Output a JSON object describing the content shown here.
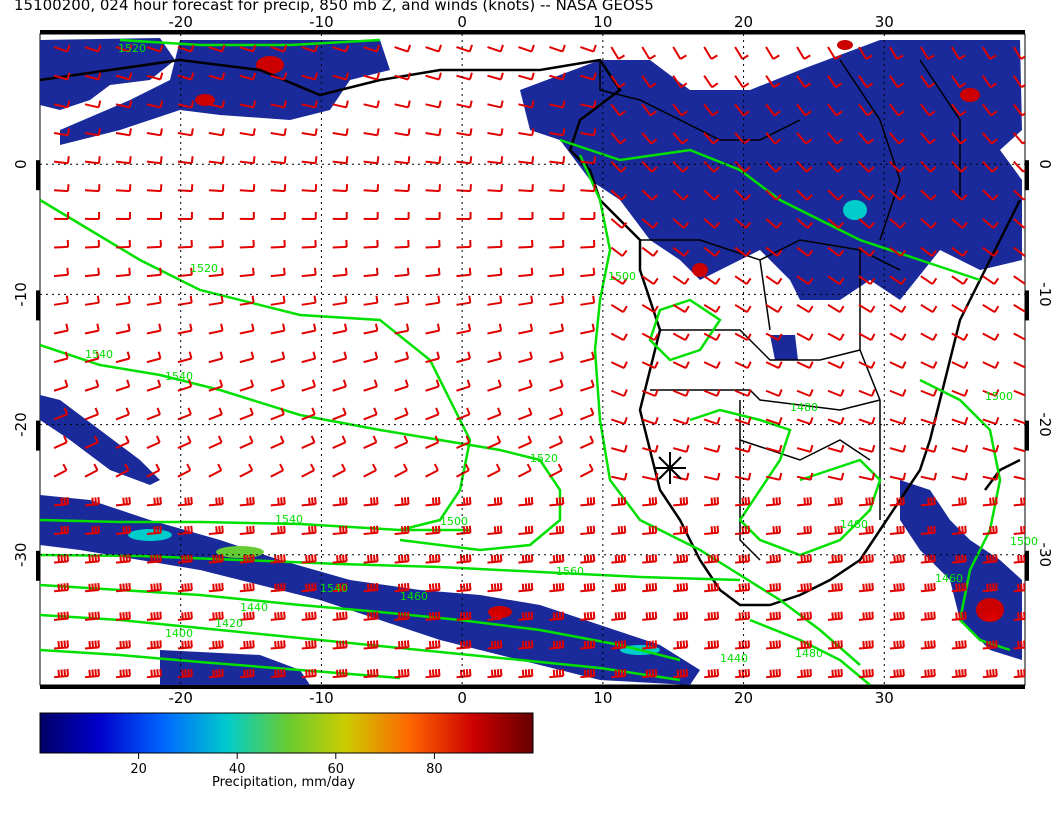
{
  "title": "15100200, 024 hour forecast for precip, 850 mb Z, and winds (knots) -- NASA GEOS5",
  "map": {
    "lon_range": [
      -30,
      40
    ],
    "lat_range": [
      -40,
      10
    ],
    "lon_ticks": [
      "-20",
      "-10",
      "0",
      "10",
      "20",
      "30"
    ],
    "lat_ticks": [
      "0",
      "-10",
      "-20",
      "-30"
    ],
    "contour_labels": [
      "1520",
      "1520",
      "1540",
      "1540",
      "1540",
      "1520",
      "1500",
      "1500",
      "1560",
      "1540",
      "1440",
      "1420",
      "1460",
      "1480",
      "1480",
      "1480",
      "1460",
      "1500",
      "1500",
      "1440",
      "1400"
    ],
    "marker": "star"
  },
  "colorbar": {
    "ticks": [
      "20",
      "40",
      "60",
      "80"
    ],
    "title": "Precipitation, mm/day",
    "min": 0,
    "max": 100,
    "colors": [
      "#000066",
      "#0000cc",
      "#0066ff",
      "#00cccc",
      "#66cc33",
      "#cccc00",
      "#ff6600",
      "#cc0000",
      "#660000"
    ]
  },
  "colors": {
    "precip_base": "#1a2a9a",
    "contour": "#00e000",
    "wind": "#e00000",
    "coast": "#000000",
    "grid": "#000000"
  }
}
